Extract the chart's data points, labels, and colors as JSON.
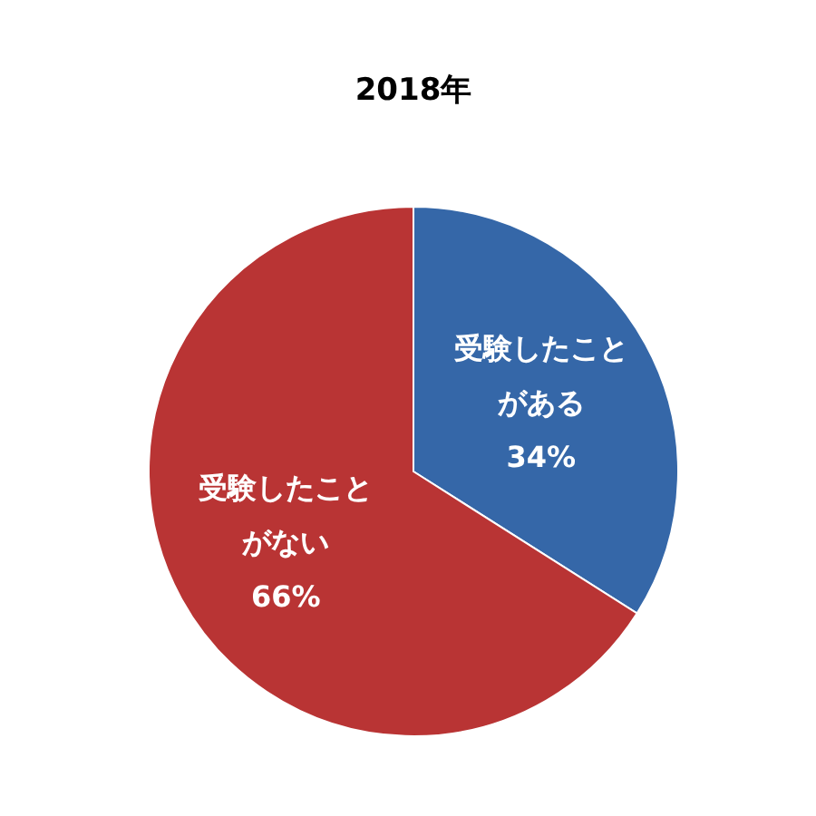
{
  "chart_data": {
    "type": "pie",
    "title": "2018年",
    "categories": [
      "受験したことがある",
      "受験したことがない"
    ],
    "values": [
      34,
      66
    ],
    "colors": [
      "#3567a8",
      "#b93434"
    ],
    "value_labels": [
      "34%",
      "66%"
    ]
  }
}
